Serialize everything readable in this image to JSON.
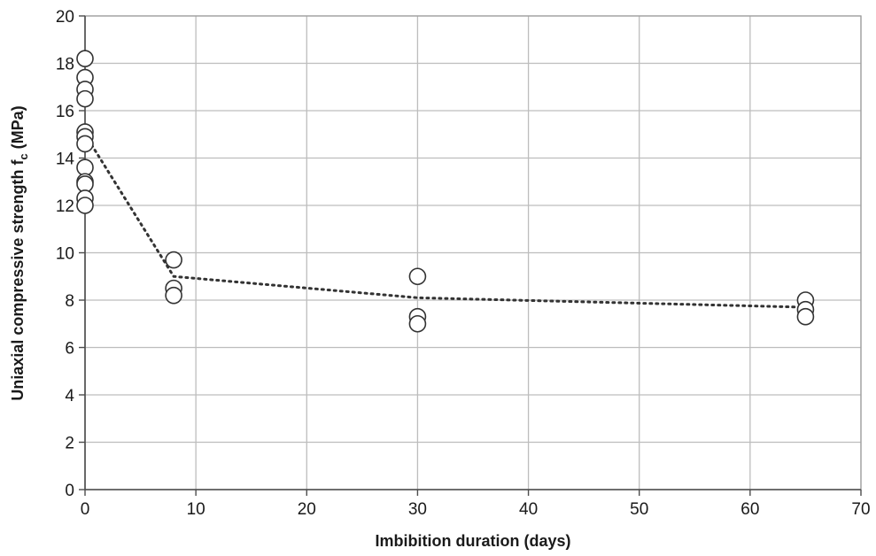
{
  "chart_data": {
    "type": "scatter",
    "xlabel": "Imbibition duration (days)",
    "ylabel_main": "Uniaxial compressive strength f",
    "ylabel_sub": "c",
    "ylabel_unit": " (MPa)",
    "xlim": [
      0,
      70
    ],
    "ylim": [
      0,
      20
    ],
    "x_ticks": [
      0,
      10,
      20,
      30,
      40,
      50,
      60,
      70
    ],
    "y_ticks": [
      0,
      2,
      4,
      6,
      8,
      10,
      12,
      14,
      16,
      18,
      20
    ],
    "grid": true,
    "marker": "open-circle",
    "points": [
      {
        "x": 0,
        "y": 18.2
      },
      {
        "x": 0,
        "y": 17.4
      },
      {
        "x": 0,
        "y": 16.9
      },
      {
        "x": 0,
        "y": 16.5
      },
      {
        "x": 0,
        "y": 15.1
      },
      {
        "x": 0,
        "y": 14.9
      },
      {
        "x": 0,
        "y": 14.6
      },
      {
        "x": 0,
        "y": 13.6
      },
      {
        "x": 0,
        "y": 13.0
      },
      {
        "x": 0,
        "y": 12.9
      },
      {
        "x": 0,
        "y": 12.3
      },
      {
        "x": 0,
        "y": 12.0
      },
      {
        "x": 8,
        "y": 9.7
      },
      {
        "x": 8,
        "y": 8.5
      },
      {
        "x": 8,
        "y": 8.2
      },
      {
        "x": 30,
        "y": 9.0
      },
      {
        "x": 30,
        "y": 7.3
      },
      {
        "x": 30,
        "y": 7.0
      },
      {
        "x": 65,
        "y": 8.0
      },
      {
        "x": 65,
        "y": 7.6
      },
      {
        "x": 65,
        "y": 7.3
      }
    ],
    "trend_line": {
      "style": "dotted",
      "points": [
        {
          "x": 0,
          "y": 15.0
        },
        {
          "x": 8,
          "y": 9.0
        },
        {
          "x": 30,
          "y": 8.1
        },
        {
          "x": 65,
          "y": 7.7
        }
      ]
    }
  }
}
